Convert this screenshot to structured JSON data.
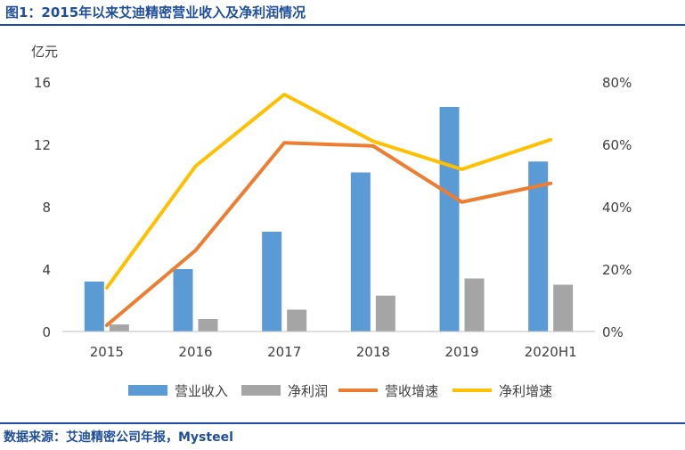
{
  "header": {
    "title": "图1：2015年以来艾迪精密营业收入及净利润情况"
  },
  "footer": {
    "source": "数据来源：艾迪精密公司年报，Mysteel"
  },
  "chart_data": {
    "type": "bar",
    "categories": [
      "2015",
      "2016",
      "2017",
      "2018",
      "2019",
      "2020H1"
    ],
    "y_left": {
      "unit_label": "亿元",
      "range": [
        0,
        16
      ],
      "ticks": [
        "0",
        "4",
        "8",
        "12",
        "16"
      ]
    },
    "y_right": {
      "range": [
        0,
        80
      ],
      "ticks": [
        "0%",
        "20%",
        "40%",
        "60%",
        "80%"
      ]
    },
    "series": [
      {
        "name": "营业收入",
        "type": "bar",
        "axis": "left",
        "color": "#5b9bd5",
        "values": [
          3.2,
          4.0,
          6.4,
          10.2,
          14.4,
          10.9
        ]
      },
      {
        "name": "净利润",
        "type": "bar",
        "axis": "left",
        "color": "#a5a5a5",
        "values": [
          0.45,
          0.8,
          1.4,
          2.3,
          3.4,
          3.0
        ]
      },
      {
        "name": "营收增速",
        "type": "line",
        "axis": "right",
        "color": "#ed7d31",
        "values": [
          2,
          26,
          60.5,
          59.5,
          41.5,
          47.5
        ]
      },
      {
        "name": "净利增速",
        "type": "line",
        "axis": "right",
        "color": "#ffc000",
        "values": [
          14,
          53,
          76,
          61,
          52,
          61.5
        ]
      }
    ],
    "legend_position": "bottom",
    "grid": false
  }
}
